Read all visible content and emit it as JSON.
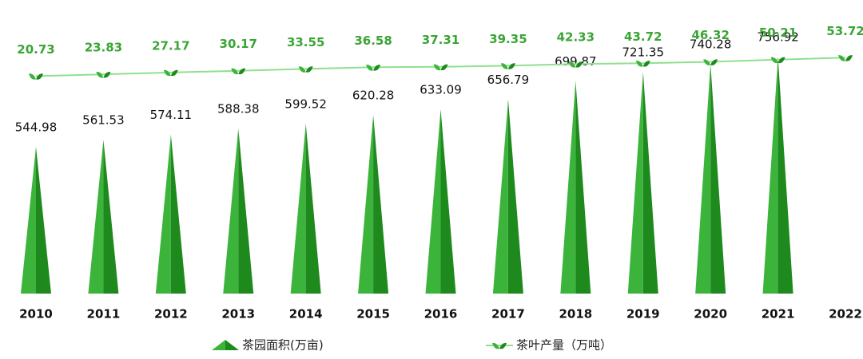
{
  "chart_data": {
    "type": "bar-line",
    "categories": [
      "2010",
      "2011",
      "2012",
      "2013",
      "2014",
      "2015",
      "2016",
      "2017",
      "2018",
      "2019",
      "2020",
      "2021",
      "2022"
    ],
    "series": [
      {
        "name": "茶园面积(万亩)",
        "color": "#3cb43c",
        "values": [
          544.98,
          561.53,
          574.11,
          588.38,
          599.52,
          620.28,
          633.09,
          656.79,
          699.87,
          721.35,
          740.28,
          756.92,
          null
        ]
      },
      {
        "name": "茶叶产量（万吨）",
        "color": "#8fe08f",
        "axis": "y2",
        "values": [
          20.73,
          23.83,
          27.17,
          30.17,
          33.55,
          36.58,
          37.31,
          39.35,
          42.33,
          43.72,
          46.32,
          50.21,
          53.72
        ]
      }
    ],
    "ylim": [
      200,
      815
    ],
    "y2lim": [
      -370,
      100
    ]
  }
}
